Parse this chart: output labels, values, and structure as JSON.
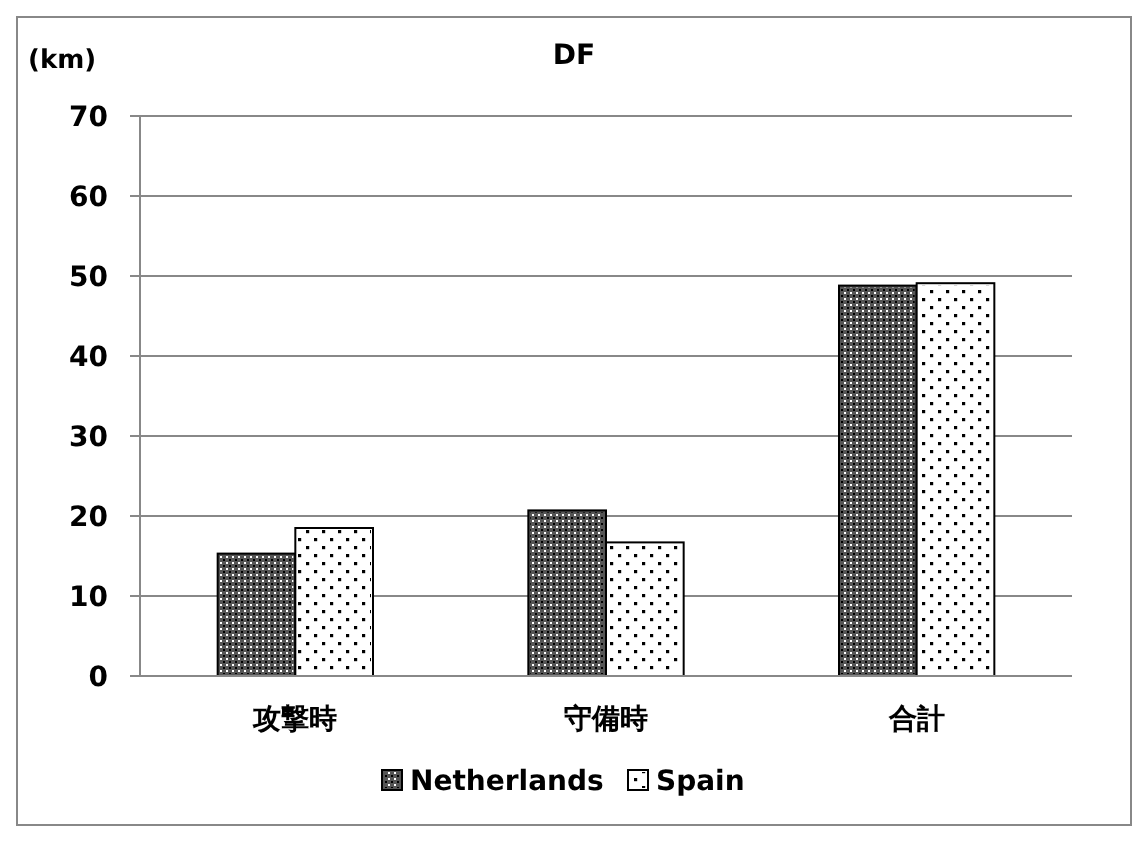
{
  "chart_data": {
    "type": "bar",
    "title": "DF",
    "ylabel": "(km)",
    "categories": [
      "攻撃時",
      "守備時",
      "合計"
    ],
    "series": [
      {
        "name": "Netherlands",
        "color": "#555555",
        "values": [
          15.3,
          20.7,
          48.8
        ]
      },
      {
        "name": "Spain",
        "color": "#ffffff",
        "values": [
          18.5,
          16.7,
          49.1
        ]
      }
    ],
    "ylim": [
      0,
      70
    ],
    "yticks": [
      0,
      10,
      20,
      30,
      40,
      50,
      60,
      70
    ],
    "grid": "y",
    "legend": "bottom"
  }
}
